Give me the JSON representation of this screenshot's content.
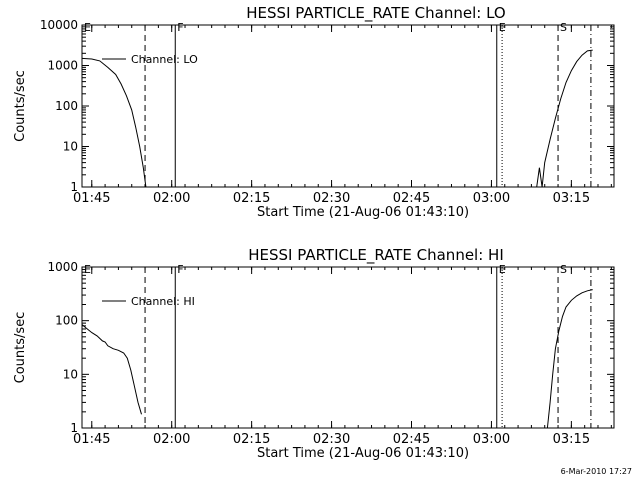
{
  "footer_timestamp": "6-Mar-2010 17:27",
  "chart_data": [
    {
      "type": "line",
      "title": "HESSI PARTICLE_RATE Channel: LO",
      "xlabel": "Start Time (21-Aug-06 01:43:10)",
      "ylabel": "Counts/sec",
      "y_scale": "log",
      "xlim": [
        "01:43:10",
        "03:23:00"
      ],
      "ylim": [
        1,
        10000
      ],
      "x_ticks": [
        "01:45",
        "02:00",
        "02:15",
        "02:30",
        "02:45",
        "03:00",
        "03:15"
      ],
      "y_ticks": [
        {
          "value": 1,
          "label": "1"
        },
        {
          "value": 10,
          "label": "10"
        },
        {
          "value": 100,
          "label": "100"
        },
        {
          "value": 1000,
          "label": "1000"
        },
        {
          "value": 10000,
          "label": "10000"
        }
      ],
      "legend": {
        "placement": "top-left",
        "entries": [
          "Channel: LO"
        ]
      },
      "grid": false,
      "event_markers": [
        {
          "label": "E",
          "time": "01:43:10",
          "style": "solid"
        },
        {
          "label": "",
          "time": "01:55:00",
          "style": "dashed"
        },
        {
          "label": "F",
          "time": "02:00:40",
          "style": "solid"
        },
        {
          "label": "E",
          "time": "03:01:00",
          "style": "solid"
        },
        {
          "label": "",
          "time": "03:02:00",
          "style": "dotted"
        },
        {
          "label": "S",
          "time": "03:12:30",
          "style": "dashed"
        },
        {
          "label": "",
          "time": "03:18:40",
          "style": "dashdot"
        }
      ],
      "series": [
        {
          "name": "Channel: LO",
          "segments": [
            [
              [
                "01:43:10",
                1500
              ],
              [
                "01:45:00",
                1450
              ],
              [
                "01:46:30",
                1300
              ],
              [
                "01:48:00",
                900
              ],
              [
                "01:49:30",
                600
              ],
              [
                "01:50:30",
                350
              ],
              [
                "01:51:30",
                180
              ],
              [
                "01:52:30",
                80
              ],
              [
                "01:53:15",
                30
              ],
              [
                "01:54:00",
                10
              ],
              [
                "01:54:40",
                3
              ],
              [
                "01:55:10",
                1
              ]
            ],
            [
              [
                "03:08:30",
                1
              ],
              [
                "03:09:00",
                3
              ],
              [
                "03:09:30",
                1
              ],
              [
                "03:10:00",
                4
              ],
              [
                "03:11:00",
                15
              ],
              [
                "03:12:00",
                50
              ],
              [
                "03:13:00",
                150
              ],
              [
                "03:14:00",
                380
              ],
              [
                "03:15:00",
                750
              ],
              [
                "03:16:00",
                1250
              ],
              [
                "03:17:00",
                1800
              ],
              [
                "03:18:00",
                2300
              ],
              [
                "03:19:00",
                2400
              ]
            ]
          ]
        }
      ]
    },
    {
      "type": "line",
      "title": "HESSI PARTICLE_RATE Channel: HI",
      "xlabel": "Start Time (21-Aug-06 01:43:10)",
      "ylabel": "Counts/sec",
      "y_scale": "log",
      "xlim": [
        "01:43:10",
        "03:23:00"
      ],
      "ylim": [
        1,
        1000
      ],
      "x_ticks": [
        "01:45",
        "02:00",
        "02:15",
        "02:30",
        "02:45",
        "03:00",
        "03:15"
      ],
      "y_ticks": [
        {
          "value": 1,
          "label": "1"
        },
        {
          "value": 10,
          "label": "10"
        },
        {
          "value": 100,
          "label": "100"
        },
        {
          "value": 1000,
          "label": "1000"
        }
      ],
      "legend": {
        "placement": "top-left",
        "entries": [
          "Channel: HI"
        ]
      },
      "grid": false,
      "event_markers": [
        {
          "label": "E",
          "time": "01:43:10",
          "style": "solid"
        },
        {
          "label": "",
          "time": "01:55:00",
          "style": "dashed"
        },
        {
          "label": "F",
          "time": "02:00:40",
          "style": "solid"
        },
        {
          "label": "E",
          "time": "03:01:00",
          "style": "solid"
        },
        {
          "label": "",
          "time": "03:02:00",
          "style": "dotted"
        },
        {
          "label": "S",
          "time": "03:12:30",
          "style": "dashed"
        },
        {
          "label": "",
          "time": "03:18:40",
          "style": "dashdot"
        }
      ],
      "series": [
        {
          "name": "Channel: HI",
          "segments": [
            [
              [
                "01:43:10",
                85
              ],
              [
                "01:44:00",
                72
              ],
              [
                "01:45:00",
                60
              ],
              [
                "01:46:00",
                52
              ],
              [
                "01:47:00",
                42
              ],
              [
                "01:47:30",
                40
              ],
              [
                "01:48:00",
                34
              ],
              [
                "01:49:00",
                30
              ],
              [
                "01:50:00",
                28
              ],
              [
                "01:51:00",
                25
              ],
              [
                "01:51:40",
                20
              ],
              [
                "01:52:20",
                12
              ],
              [
                "01:53:00",
                6
              ],
              [
                "01:53:40",
                3
              ],
              [
                "01:54:20",
                1.8
              ]
            ],
            [
              [
                "03:10:30",
                1
              ],
              [
                "03:11:00",
                3
              ],
              [
                "03:11:30",
                10
              ],
              [
                "03:12:00",
                30
              ],
              [
                "03:12:40",
                65
              ],
              [
                "03:13:20",
                120
              ],
              [
                "03:14:00",
                180
              ],
              [
                "03:15:00",
                240
              ],
              [
                "03:16:00",
                290
              ],
              [
                "03:17:00",
                330
              ],
              [
                "03:18:00",
                360
              ],
              [
                "03:19:00",
                380
              ]
            ]
          ]
        }
      ]
    }
  ]
}
